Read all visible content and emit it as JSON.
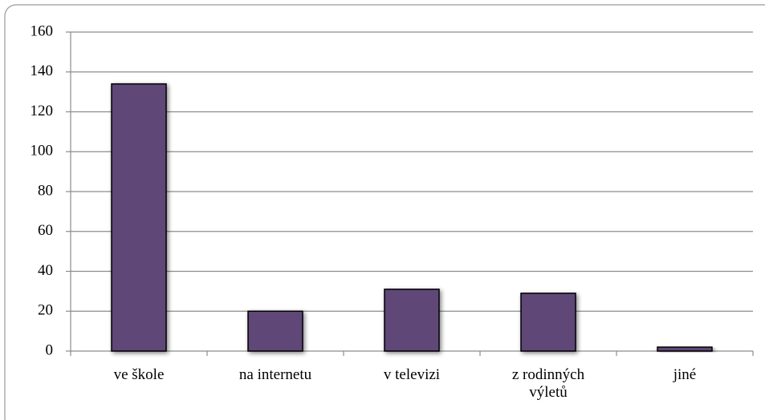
{
  "chart_data": {
    "type": "bar",
    "categories": [
      "ve škole",
      "na internetu",
      "v televizi",
      "z rodinných výletů",
      "jiné"
    ],
    "values": [
      134,
      20,
      31,
      29,
      2
    ],
    "color": "#5e4777",
    "ylim": [
      0,
      160
    ],
    "yticks": [
      0,
      20,
      40,
      60,
      80,
      100,
      120,
      140,
      160
    ],
    "grid": true
  }
}
